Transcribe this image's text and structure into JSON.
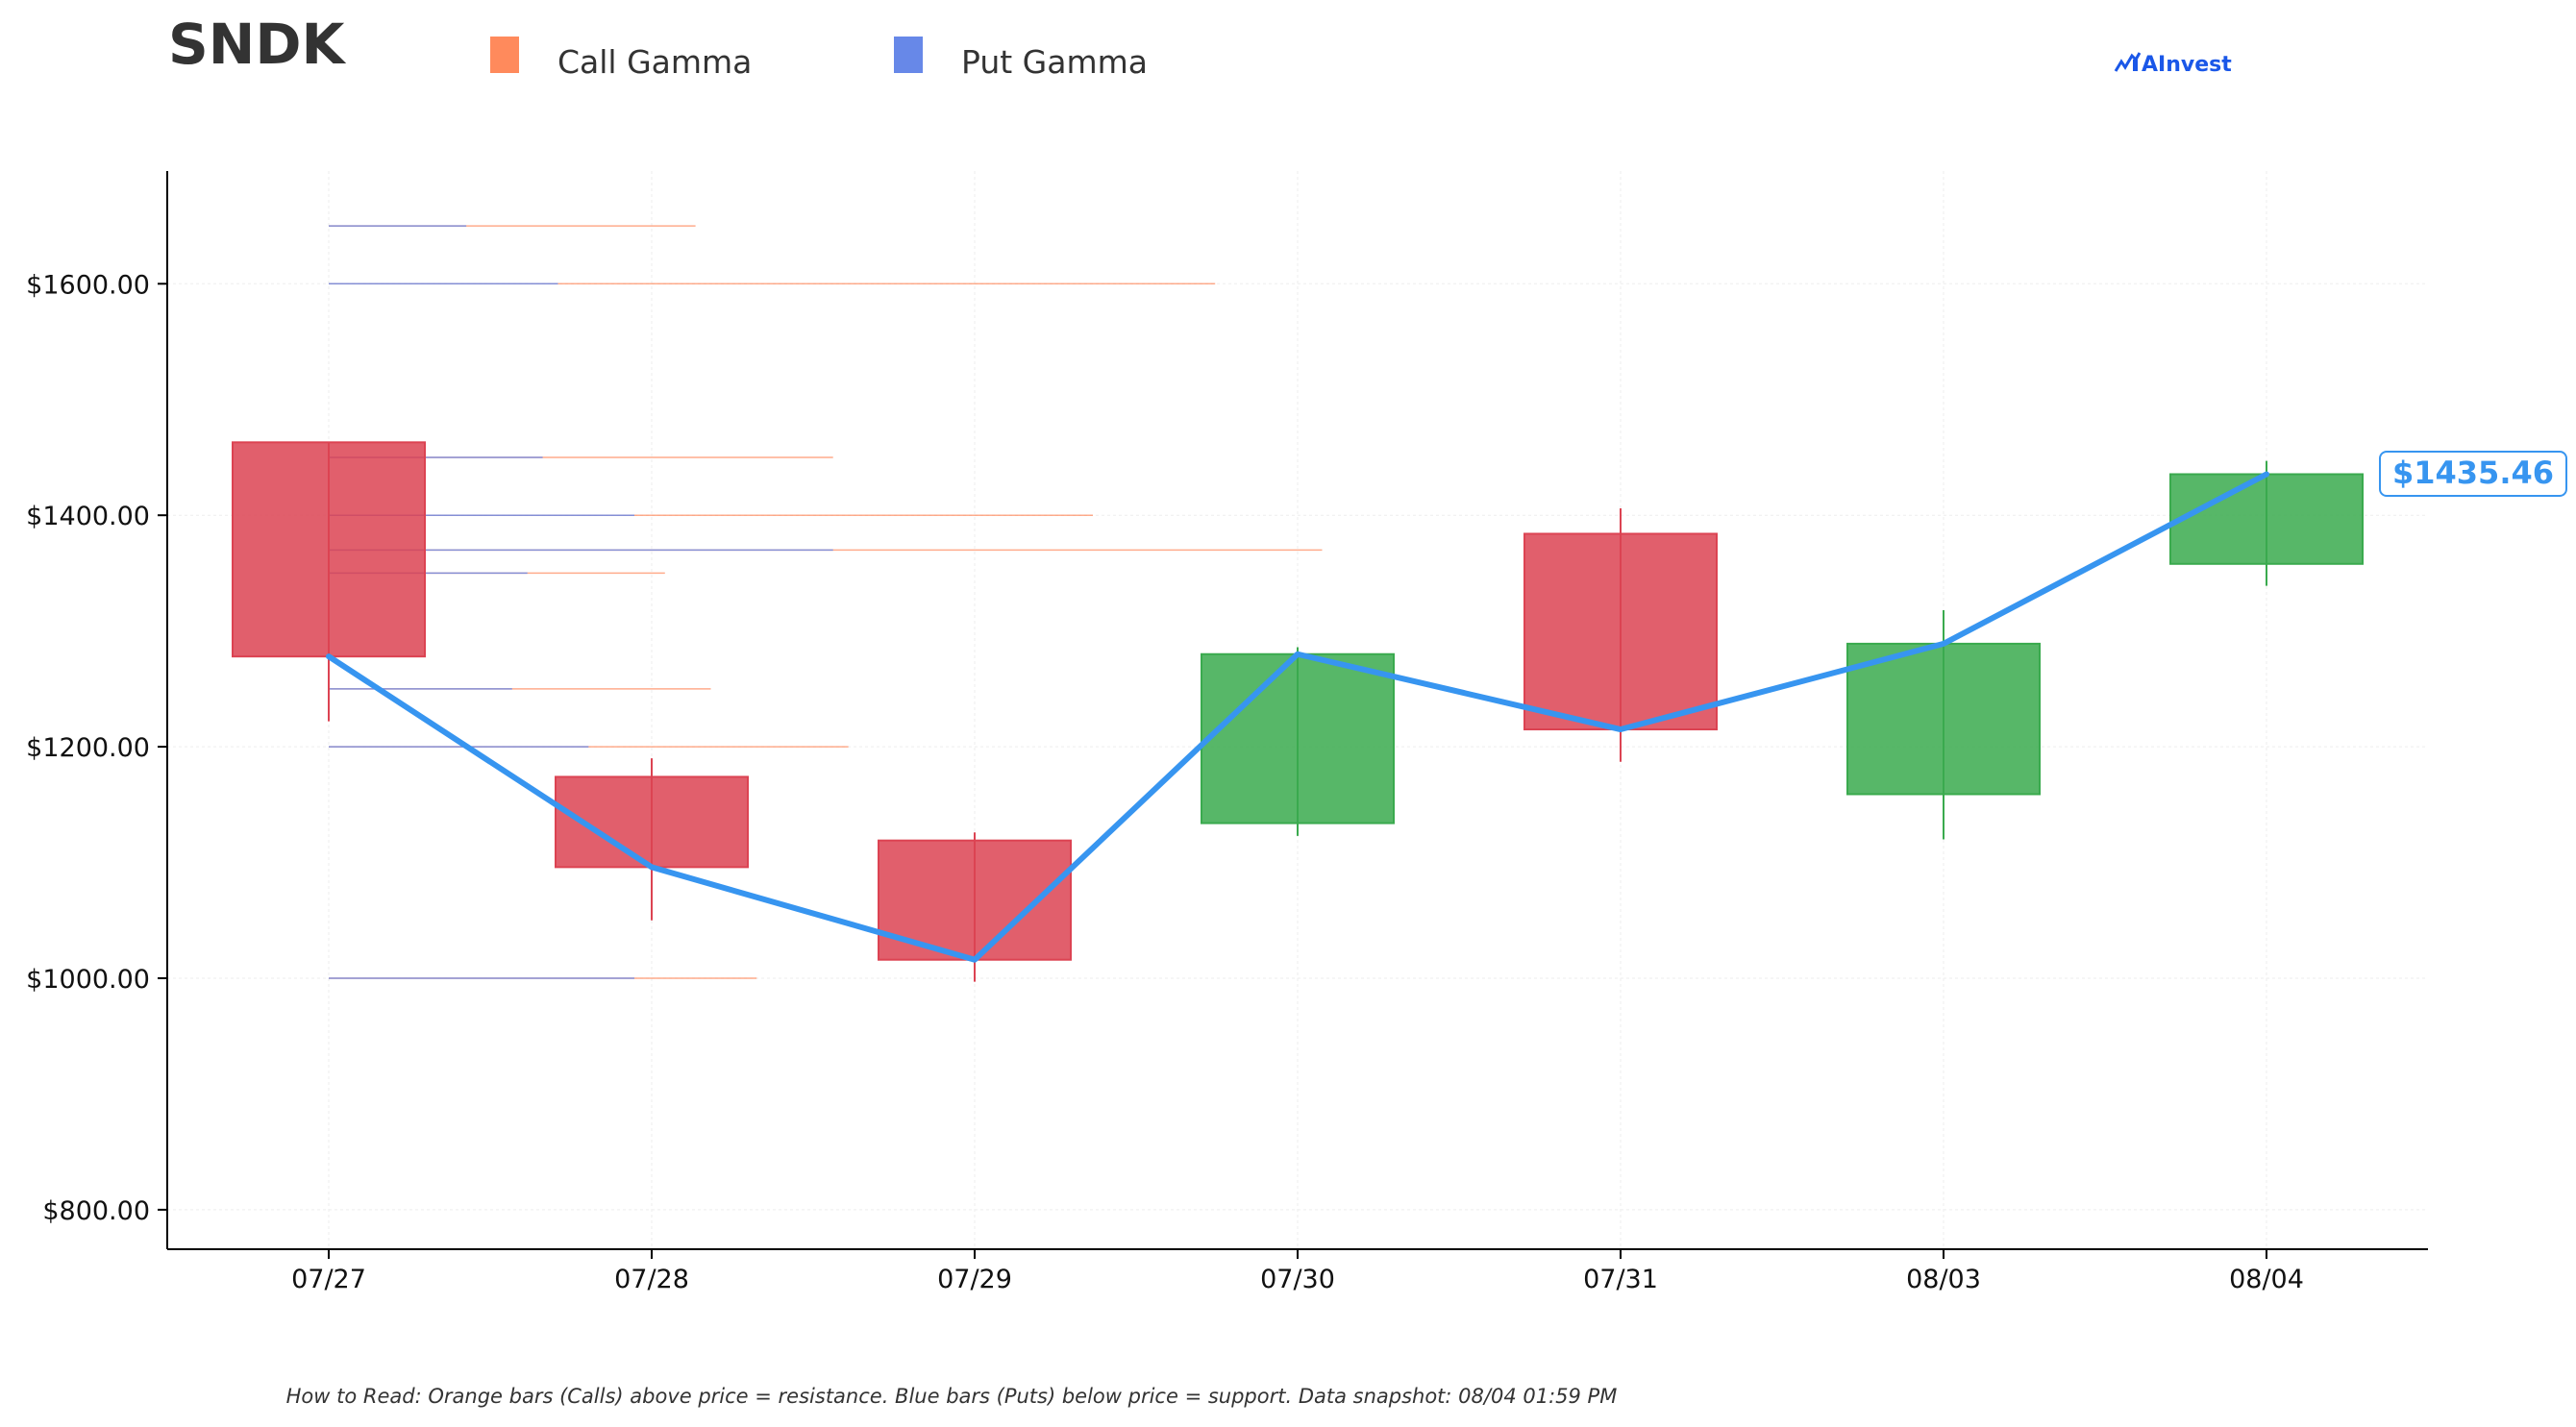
{
  "header": {
    "ticker": "SNDK",
    "brand": "AInvest"
  },
  "colors": {
    "call": "#ff8a5c",
    "put": "#6788e8",
    "up": "#3aaa4e",
    "down": "#dc4352",
    "price_line": "#3795f0",
    "axis": "#000000",
    "grid": "#eeeeee"
  },
  "legend": [
    {
      "label": "Call Gamma",
      "color": "#ff8a5c"
    },
    {
      "label": "Put Gamma",
      "color": "#6788e8"
    }
  ],
  "current_price_label": "$1435.46",
  "footnote": "How to Read: Orange bars (Calls) above price = resistance. Blue bars (Puts) below price = support. Data snapshot: 08/04 01:59 PM",
  "chart_data": {
    "type": "candlestick",
    "title": "SNDK",
    "xlabel": "",
    "ylabel": "",
    "ylim": [
      766,
      1696
    ],
    "grid": true,
    "legend_position": "top",
    "categories": [
      "07/27",
      "07/28",
      "07/29",
      "07/30",
      "07/31",
      "08/03",
      "08/04"
    ],
    "y_ticks": [
      800,
      1000,
      1200,
      1400,
      1600
    ],
    "y_tick_labels": [
      "$800.00",
      "$1000.00",
      "$1200.00",
      "$1400.00",
      "$1600.00"
    ],
    "candles": [
      {
        "date": "07/27",
        "open": 1463,
        "high": 1463,
        "low": 1222,
        "close": 1278
      },
      {
        "date": "07/28",
        "open": 1174,
        "high": 1190,
        "low": 1050,
        "close": 1096
      },
      {
        "date": "07/29",
        "open": 1119,
        "high": 1126,
        "low": 997,
        "close": 1016
      },
      {
        "date": "07/30",
        "open": 1134,
        "high": 1286,
        "low": 1123,
        "close": 1280
      },
      {
        "date": "07/31",
        "open": 1384,
        "high": 1406,
        "low": 1187,
        "close": 1215
      },
      {
        "date": "08/03",
        "open": 1159,
        "high": 1318,
        "low": 1120,
        "close": 1289
      },
      {
        "date": "08/04",
        "open": 1358,
        "high": 1447,
        "low": 1339,
        "close": 1435.46
      }
    ],
    "series": [
      {
        "values": [
          1278,
          1096,
          1016,
          1280,
          1215,
          1289,
          1435.46
        ]
      }
    ],
    "gamma_levels": [
      {
        "strike": 1650,
        "call_gamma": 2.4,
        "put_gamma": 0.9
      },
      {
        "strike": 1600,
        "call_gamma": 5.8,
        "put_gamma": 1.5
      },
      {
        "strike": 1450,
        "call_gamma": 3.3,
        "put_gamma": 1.4
      },
      {
        "strike": 1400,
        "call_gamma": 5.0,
        "put_gamma": 2.0
      },
      {
        "strike": 1370,
        "call_gamma": 6.5,
        "put_gamma": 3.3
      },
      {
        "strike": 1350,
        "call_gamma": 2.2,
        "put_gamma": 1.3
      },
      {
        "strike": 1250,
        "call_gamma": 2.5,
        "put_gamma": 1.2
      },
      {
        "strike": 1200,
        "call_gamma": 3.4,
        "put_gamma": 1.7
      },
      {
        "strike": 1000,
        "call_gamma": 2.8,
        "put_gamma": 2.0
      }
    ]
  }
}
